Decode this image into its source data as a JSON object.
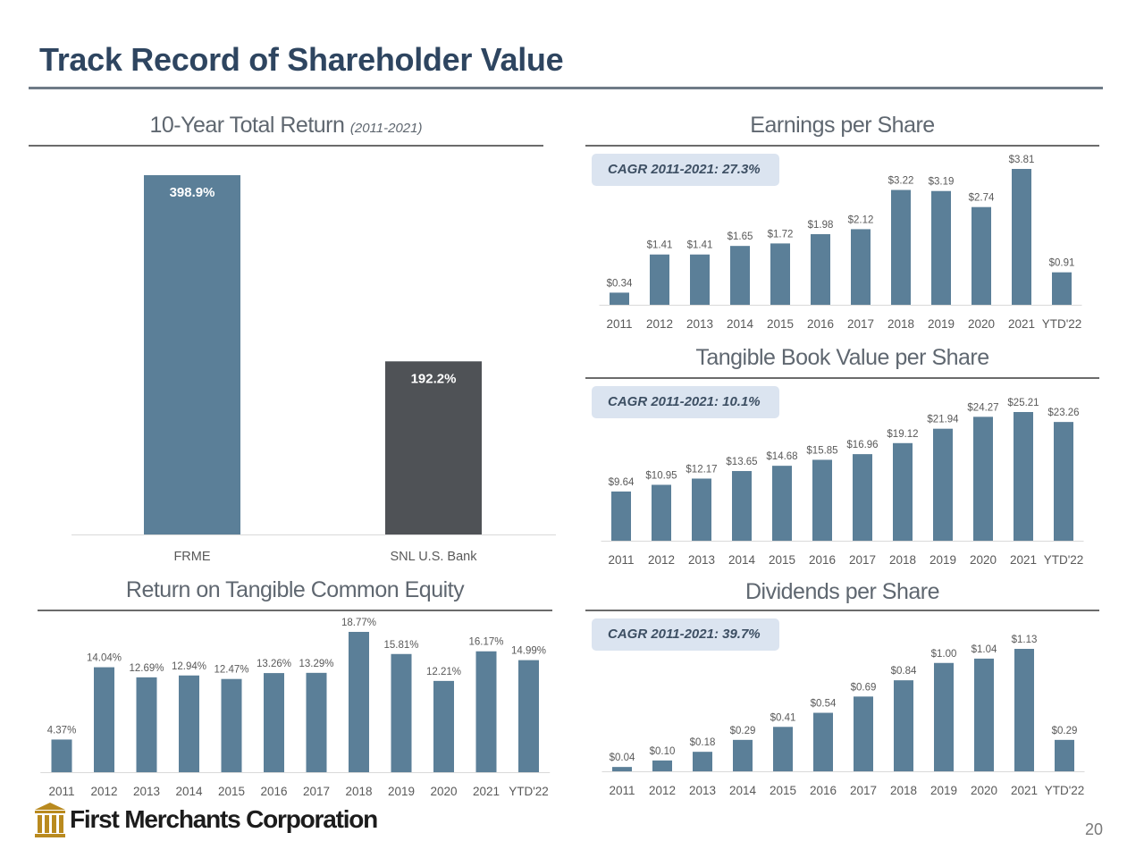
{
  "slide": {
    "title": "Track Record of Shareholder Value",
    "page_number": "20",
    "company": "First Merchants Corporation",
    "logo_icon": "columns-logo-icon"
  },
  "colors": {
    "title": "#2e4560",
    "bar": "#5b7f98",
    "bar_dark": "#4f5256",
    "cagr_box": "#dbe4f0",
    "logo_gold": "#b98a1f"
  },
  "panels": {
    "total_return": {
      "title": "10-Year Total Return",
      "subtitle": "(2011-2021)"
    },
    "eps": {
      "title": "Earnings per Share",
      "cagr": "CAGR 2011-2021: 27.3%"
    },
    "tbv": {
      "title": "Tangible Book Value per Share",
      "cagr": "CAGR 2011-2021: 10.1%"
    },
    "rotce": {
      "title": "Return on Tangible Common Equity"
    },
    "dps": {
      "title": "Dividends per Share",
      "cagr": "CAGR 2011-2021: 39.7%"
    }
  },
  "chart_data": [
    {
      "id": "total_return",
      "type": "bar",
      "categories": [
        "FRME",
        "SNL U.S. Bank"
      ],
      "values": [
        398.9,
        192.2
      ],
      "labels": [
        "398.9%",
        "192.2%"
      ],
      "colors": [
        "#5b7f98",
        "#4f5256"
      ],
      "ylim": [
        0,
        398.9
      ],
      "label_position": "inside-top"
    },
    {
      "id": "eps",
      "type": "bar",
      "categories": [
        "2011",
        "2012",
        "2013",
        "2014",
        "2015",
        "2016",
        "2017",
        "2018",
        "2019",
        "2020",
        "2021",
        "YTD'22"
      ],
      "values": [
        0.34,
        1.41,
        1.41,
        1.65,
        1.72,
        1.98,
        2.12,
        3.22,
        3.19,
        2.74,
        3.81,
        0.91
      ],
      "labels": [
        "$0.34",
        "$1.41",
        "$1.41",
        "$1.65",
        "$1.72",
        "$1.98",
        "$2.12",
        "$3.22",
        "$3.19",
        "$2.74",
        "$3.81",
        "$0.91"
      ],
      "ylim": [
        0,
        3.81
      ]
    },
    {
      "id": "tbv",
      "type": "bar",
      "categories": [
        "2011",
        "2012",
        "2013",
        "2014",
        "2015",
        "2016",
        "2017",
        "2018",
        "2019",
        "2020",
        "2021",
        "YTD'22"
      ],
      "values": [
        9.64,
        10.95,
        12.17,
        13.65,
        14.68,
        15.85,
        16.96,
        19.12,
        21.94,
        24.27,
        25.21,
        23.26
      ],
      "labels": [
        "$9.64",
        "$10.95",
        "$12.17",
        "$13.65",
        "$14.68",
        "$15.85",
        "$16.96",
        "$19.12",
        "$21.94",
        "$24.27",
        "$25.21",
        "$23.26"
      ],
      "ylim": [
        0,
        25.21
      ]
    },
    {
      "id": "rotce",
      "type": "bar",
      "categories": [
        "2011",
        "2012",
        "2013",
        "2014",
        "2015",
        "2016",
        "2017",
        "2018",
        "2019",
        "2020",
        "2021",
        "YTD'22"
      ],
      "values": [
        4.37,
        14.04,
        12.69,
        12.94,
        12.47,
        13.26,
        13.29,
        18.77,
        15.81,
        12.21,
        16.17,
        14.99
      ],
      "labels": [
        "4.37%",
        "14.04%",
        "12.69%",
        "12.94%",
        "12.47%",
        "13.26%",
        "13.29%",
        "18.77%",
        "15.81%",
        "12.21%",
        "16.17%",
        "14.99%"
      ],
      "ylim": [
        0,
        18.77
      ]
    },
    {
      "id": "dps",
      "type": "bar",
      "categories": [
        "2011",
        "2012",
        "2013",
        "2014",
        "2015",
        "2016",
        "2017",
        "2018",
        "2019",
        "2020",
        "2021",
        "YTD'22"
      ],
      "values": [
        0.04,
        0.1,
        0.18,
        0.29,
        0.41,
        0.54,
        0.69,
        0.84,
        1.0,
        1.04,
        1.13,
        0.29
      ],
      "labels": [
        "$0.04",
        "$0.10",
        "$0.18",
        "$0.29",
        "$0.41",
        "$0.54",
        "$0.69",
        "$0.84",
        "$1.00",
        "$1.04",
        "$1.13",
        "$0.29"
      ],
      "ylim": [
        0,
        1.13
      ]
    }
  ]
}
